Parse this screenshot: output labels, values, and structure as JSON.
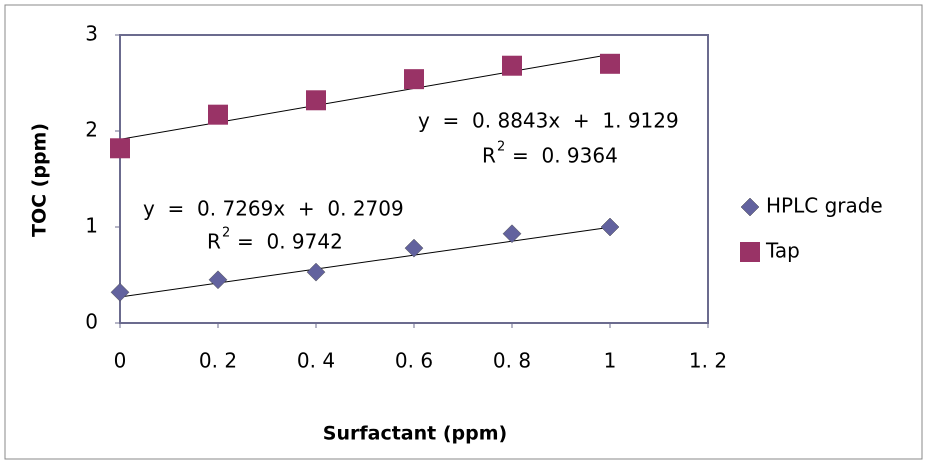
{
  "chart_data": {
    "type": "scatter",
    "x_label": "Surfactant (ppm)",
    "y_label": "TOC (ppm)",
    "xlim": [
      0,
      1.2
    ],
    "ylim": [
      0,
      3
    ],
    "xticks": [
      0,
      {
        "value": 0.2,
        "label": "0. 2"
      },
      {
        "value": 0.4,
        "label": "0. 4"
      },
      {
        "value": 0.6,
        "label": "0. 6"
      },
      {
        "value": 0.8,
        "label": "0. 8"
      },
      1,
      {
        "value": 1.2,
        "label": "1. 2"
      }
    ],
    "yticks": [
      0,
      1,
      2,
      3
    ],
    "legend": "right",
    "series": [
      {
        "name": "HPLC grade",
        "color": "#62629e",
        "marker": "diamond",
        "x": [
          0,
          0.2,
          0.4,
          0.6,
          0.8,
          1
        ],
        "values": [
          0.32,
          0.45,
          0.53,
          0.78,
          0.93,
          1.0
        ],
        "trendline": {
          "slope": 0.7269,
          "intercept": 0.2709
        },
        "equation": "y  =  0. 7269x  +  0. 2709",
        "r_label": "R",
        "r_sup": "2",
        "r_value": "=  0. 9742"
      },
      {
        "name": "Tap",
        "color": "#993366",
        "marker": "square",
        "x": [
          0,
          0.2,
          0.4,
          0.6,
          0.8,
          1
        ],
        "values": [
          1.82,
          2.17,
          2.32,
          2.54,
          2.68,
          2.7
        ],
        "trendline": {
          "slope": 0.8843,
          "intercept": 1.9129
        },
        "equation": "y  =  0. 8843x  +  1. 9129",
        "r_label": "R",
        "r_sup": "2",
        "r_value": "=  0. 9364"
      }
    ]
  }
}
